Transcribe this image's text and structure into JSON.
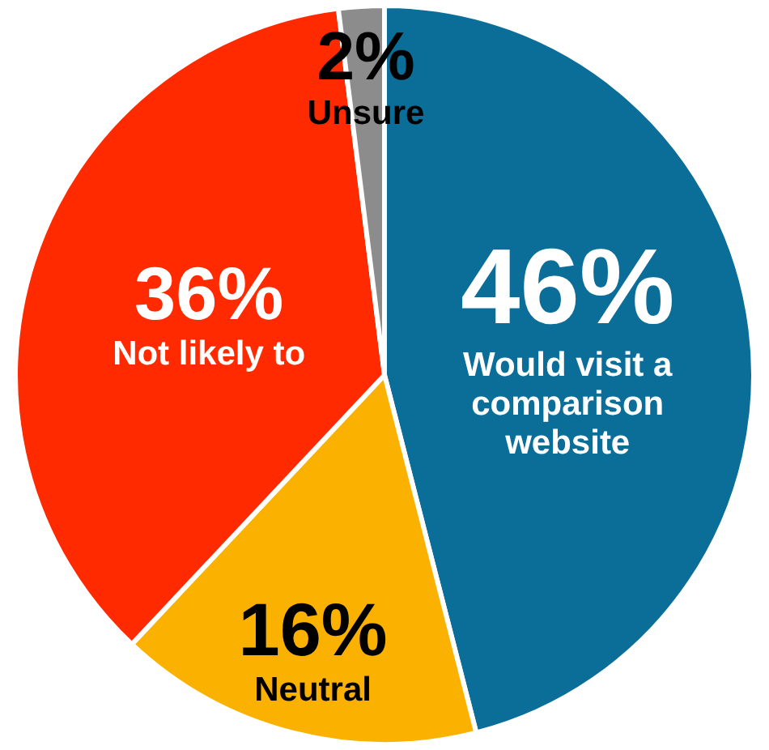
{
  "chart_data": {
    "type": "pie",
    "categories": [
      "Would visit a comparison website",
      "Neutral",
      "Not likely to",
      "Unsure"
    ],
    "values": [
      46,
      16,
      36,
      2
    ],
    "colors": [
      "#0b6e99",
      "#fbb100",
      "#ff2a00",
      "#8c8c8c"
    ],
    "value_labels": [
      "46%",
      "16%",
      "36%",
      "2%"
    ],
    "legend": false
  }
}
